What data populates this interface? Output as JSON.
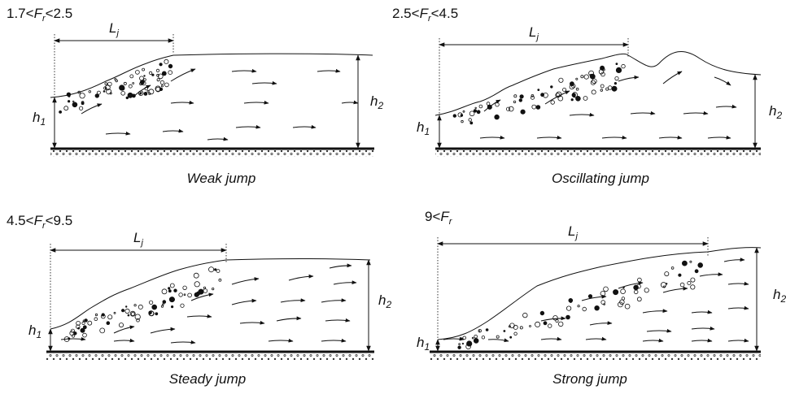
{
  "panels": [
    {
      "condition": {
        "lower": "1.7<",
        "symbol": "F",
        "subscript": "r",
        "upper": "<2.5"
      },
      "length": {
        "symbol": "L",
        "subscript": "j"
      },
      "h1": {
        "symbol": "h",
        "subscript": "1"
      },
      "h2": {
        "symbol": "h",
        "subscript": "2"
      },
      "caption": "Weak jump"
    },
    {
      "condition": {
        "lower": "2.5<",
        "symbol": "F",
        "subscript": "r",
        "upper": "<4.5"
      },
      "length": {
        "symbol": "L",
        "subscript": "j"
      },
      "h1": {
        "symbol": "h",
        "subscript": "1"
      },
      "h2": {
        "symbol": "h",
        "subscript": "2"
      },
      "caption": "Oscillating jump"
    },
    {
      "condition": {
        "lower": "4.5<",
        "symbol": "F",
        "subscript": "r",
        "upper": "<9.5"
      },
      "length": {
        "symbol": "L",
        "subscript": "j"
      },
      "h1": {
        "symbol": "h",
        "subscript": "1"
      },
      "h2": {
        "symbol": "h",
        "subscript": "2"
      },
      "caption": "Steady jump"
    },
    {
      "condition": {
        "lower": "9<",
        "symbol": "F",
        "subscript": "r"
      },
      "length": {
        "symbol": "L",
        "subscript": "j"
      },
      "h1": {
        "symbol": "h",
        "subscript": "1"
      },
      "h2": {
        "symbol": "h",
        "subscript": "2"
      },
      "caption": "Strong jump"
    }
  ]
}
